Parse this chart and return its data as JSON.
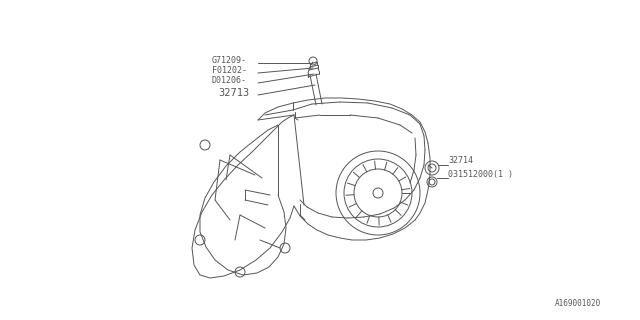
{
  "bg_color": "#ffffff",
  "line_color": "#555555",
  "text_color": "#555555",
  "labels_left": [
    "G71209-",
    "F01202-",
    "D01206-",
    "32713"
  ],
  "label_right_1": "32714",
  "label_right_2": "031512000(1 )",
  "watermark": "A169001020"
}
